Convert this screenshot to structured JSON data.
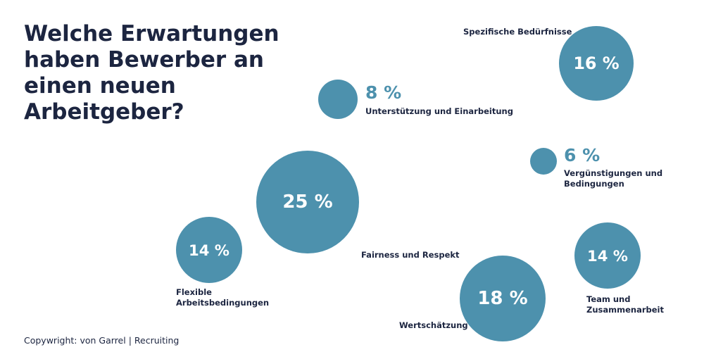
{
  "chart_data": {
    "type": "bubble",
    "title": "Welche Erwartungen haben Bewerber an einen neuen Arbeitgeber?",
    "unit": "%",
    "items": [
      {
        "label": "Spezifische Bedürfnisse",
        "value": 16,
        "value_text": "16 %"
      },
      {
        "label": "Unterstützung und Einarbeitung",
        "value": 8,
        "value_text": "8 %"
      },
      {
        "label": "Vergünstigungen und Bedingungen",
        "value": 6,
        "value_text": "6 %"
      },
      {
        "label": "Fairness und Respekt",
        "value": 25,
        "value_text": "25 %"
      },
      {
        "label": "Flexible Arbeitsbedingungen",
        "value": 14,
        "value_text": "14 %"
      },
      {
        "label": "Team und Zusammenarbeit",
        "value": 14,
        "value_text": "14 %"
      },
      {
        "label": "Wertschätzung",
        "value": 18,
        "value_text": "18 %"
      }
    ],
    "color": "#4d91ad"
  },
  "footer": {
    "copyright": "Copywright: von Garrel | Recruiting"
  }
}
